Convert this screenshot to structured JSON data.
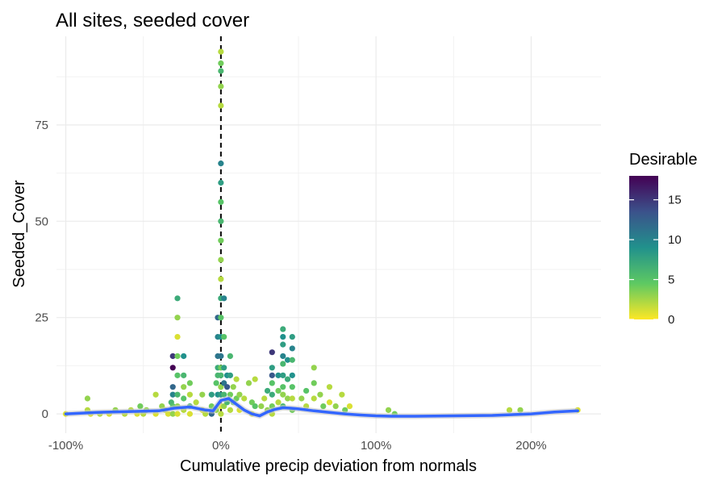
{
  "chart_data": {
    "type": "scatter",
    "title": "All sites, seeded cover",
    "xlabel": "Cumulative precip deviation from normals",
    "ylabel": "Seeded_Cover",
    "x_unit": "%",
    "xlim": [
      -106,
      245
    ],
    "ylim": [
      -5,
      98
    ],
    "x_ticks": [
      -100,
      0,
      100,
      200
    ],
    "x_tick_labels": [
      "-100%",
      "0%",
      "100%",
      "200%"
    ],
    "y_ticks": [
      0,
      25,
      50,
      75
    ],
    "y_tick_labels": [
      "0",
      "25",
      "50",
      "75"
    ],
    "grid": true,
    "reference_line": {
      "x": 0,
      "style": "dashed",
      "color": "#000000"
    },
    "color_scale": {
      "name": "Desirable",
      "palette": "viridis",
      "min": 0,
      "max": 18,
      "ticks": [
        0,
        5,
        10,
        15
      ],
      "colors": [
        "#fde725",
        "#5ec962",
        "#21918c",
        "#3b528b",
        "#440154"
      ]
    },
    "legend_position": "right",
    "points_color": "Desirable",
    "points": [
      {
        "x": -100,
        "y": 0,
        "c": 1
      },
      {
        "x": -86,
        "y": 4,
        "c": 3
      },
      {
        "x": -86,
        "y": 1,
        "c": 2
      },
      {
        "x": -84,
        "y": 0,
        "c": 1
      },
      {
        "x": -78,
        "y": 0,
        "c": 2
      },
      {
        "x": -72,
        "y": 0,
        "c": 1
      },
      {
        "x": -68,
        "y": 1,
        "c": 3
      },
      {
        "x": -62,
        "y": 0,
        "c": 2
      },
      {
        "x": -58,
        "y": 1,
        "c": 2
      },
      {
        "x": -54,
        "y": 0,
        "c": 1
      },
      {
        "x": -52,
        "y": 2,
        "c": 4
      },
      {
        "x": -50,
        "y": 0,
        "c": 2
      },
      {
        "x": -48,
        "y": 1,
        "c": 3
      },
      {
        "x": -42,
        "y": 5,
        "c": 2
      },
      {
        "x": -42,
        "y": 0,
        "c": 1
      },
      {
        "x": -38,
        "y": 2,
        "c": 3
      },
      {
        "x": -36,
        "y": 1,
        "c": 2
      },
      {
        "x": -34,
        "y": 0,
        "c": 1
      },
      {
        "x": -32,
        "y": 3,
        "c": 6
      },
      {
        "x": -31,
        "y": 15,
        "c": 15
      },
      {
        "x": -31,
        "y": 12,
        "c": 18
      },
      {
        "x": -31,
        "y": 7,
        "c": 12
      },
      {
        "x": -31,
        "y": 5,
        "c": 10
      },
      {
        "x": -31,
        "y": 2,
        "c": 5
      },
      {
        "x": -31,
        "y": 0,
        "c": 3
      },
      {
        "x": -28,
        "y": 30,
        "c": 7
      },
      {
        "x": -28,
        "y": 25,
        "c": 3
      },
      {
        "x": -28,
        "y": 20,
        "c": 1
      },
      {
        "x": -28,
        "y": 15,
        "c": 4
      },
      {
        "x": -28,
        "y": 10,
        "c": 5
      },
      {
        "x": -28,
        "y": 5,
        "c": 6
      },
      {
        "x": -28,
        "y": 2,
        "c": 3
      },
      {
        "x": -28,
        "y": 0,
        "c": 1
      },
      {
        "x": -24,
        "y": 15,
        "c": 9
      },
      {
        "x": -24,
        "y": 10,
        "c": 6
      },
      {
        "x": -24,
        "y": 7,
        "c": 3
      },
      {
        "x": -24,
        "y": 4,
        "c": 5
      },
      {
        "x": -24,
        "y": 1,
        "c": 2
      },
      {
        "x": -20,
        "y": 8,
        "c": 4
      },
      {
        "x": -20,
        "y": 5,
        "c": 2
      },
      {
        "x": -20,
        "y": 2,
        "c": 6
      },
      {
        "x": -20,
        "y": 0,
        "c": 1
      },
      {
        "x": -16,
        "y": 3,
        "c": 2
      },
      {
        "x": -12,
        "y": 5,
        "c": 3
      },
      {
        "x": -12,
        "y": 1,
        "c": 1
      },
      {
        "x": -10,
        "y": 0,
        "c": 2
      },
      {
        "x": -6,
        "y": 5,
        "c": 8
      },
      {
        "x": -6,
        "y": 2,
        "c": 4
      },
      {
        "x": -6,
        "y": 0,
        "c": 12
      },
      {
        "x": -3,
        "y": 8,
        "c": 5
      },
      {
        "x": -3,
        "y": 1,
        "c": 3
      },
      {
        "x": -2,
        "y": 25,
        "c": 12
      },
      {
        "x": -2,
        "y": 20,
        "c": 10
      },
      {
        "x": -2,
        "y": 15,
        "c": 11
      },
      {
        "x": -2,
        "y": 12,
        "c": 7
      },
      {
        "x": -2,
        "y": 10,
        "c": 6
      },
      {
        "x": -2,
        "y": 5,
        "c": 9
      },
      {
        "x": 0,
        "y": 94,
        "c": 2
      },
      {
        "x": 0,
        "y": 91,
        "c": 4
      },
      {
        "x": 0,
        "y": 89,
        "c": 6
      },
      {
        "x": 0,
        "y": 85,
        "c": 3
      },
      {
        "x": 0,
        "y": 80,
        "c": 2
      },
      {
        "x": 0,
        "y": 65,
        "c": 10
      },
      {
        "x": 0,
        "y": 60,
        "c": 8
      },
      {
        "x": 0,
        "y": 55,
        "c": 5
      },
      {
        "x": 0,
        "y": 50,
        "c": 6
      },
      {
        "x": 0,
        "y": 45,
        "c": 4
      },
      {
        "x": 0,
        "y": 40,
        "c": 3
      },
      {
        "x": 0,
        "y": 35,
        "c": 2
      },
      {
        "x": 0,
        "y": 30,
        "c": 7
      },
      {
        "x": 0,
        "y": 25,
        "c": 5
      },
      {
        "x": 0,
        "y": 20,
        "c": 9
      },
      {
        "x": 0,
        "y": 15,
        "c": 11
      },
      {
        "x": 0,
        "y": 12,
        "c": 4
      },
      {
        "x": 0,
        "y": 10,
        "c": 6
      },
      {
        "x": 0,
        "y": 7,
        "c": 3
      },
      {
        "x": 0,
        "y": 5,
        "c": 8
      },
      {
        "x": 0,
        "y": 2,
        "c": 1
      },
      {
        "x": 0,
        "y": 0,
        "c": 2
      },
      {
        "x": 2,
        "y": 30,
        "c": 10
      },
      {
        "x": 2,
        "y": 20,
        "c": 5
      },
      {
        "x": 2,
        "y": 12,
        "c": 8
      },
      {
        "x": 2,
        "y": 8,
        "c": 11
      },
      {
        "x": 2,
        "y": 5,
        "c": 6
      },
      {
        "x": 2,
        "y": 2,
        "c": 3
      },
      {
        "x": 4,
        "y": 10,
        "c": 9
      },
      {
        "x": 4,
        "y": 7,
        "c": 13
      },
      {
        "x": 4,
        "y": 3,
        "c": 6
      },
      {
        "x": 6,
        "y": 15,
        "c": 6
      },
      {
        "x": 6,
        "y": 10,
        "c": 8
      },
      {
        "x": 6,
        "y": 5,
        "c": 4
      },
      {
        "x": 6,
        "y": 1,
        "c": 2
      },
      {
        "x": 8,
        "y": 7,
        "c": 3
      },
      {
        "x": 8,
        "y": 3,
        "c": 5
      },
      {
        "x": 10,
        "y": 9,
        "c": 2
      },
      {
        "x": 10,
        "y": 4,
        "c": 4
      },
      {
        "x": 12,
        "y": 5,
        "c": 3
      },
      {
        "x": 12,
        "y": 1,
        "c": 1
      },
      {
        "x": 15,
        "y": 4,
        "c": 2
      },
      {
        "x": 18,
        "y": 8,
        "c": 3
      },
      {
        "x": 20,
        "y": 3,
        "c": 4
      },
      {
        "x": 20,
        "y": 0,
        "c": 1
      },
      {
        "x": 22,
        "y": 9,
        "c": 2
      },
      {
        "x": 22,
        "y": 2,
        "c": 5
      },
      {
        "x": 26,
        "y": 2,
        "c": 3
      },
      {
        "x": 28,
        "y": 4,
        "c": 2
      },
      {
        "x": 30,
        "y": 6,
        "c": 7
      },
      {
        "x": 30,
        "y": 1,
        "c": 3
      },
      {
        "x": 33,
        "y": 16,
        "c": 15
      },
      {
        "x": 33,
        "y": 12,
        "c": 8
      },
      {
        "x": 33,
        "y": 10,
        "c": 13
      },
      {
        "x": 33,
        "y": 8,
        "c": 5
      },
      {
        "x": 33,
        "y": 5,
        "c": 7
      },
      {
        "x": 33,
        "y": 2,
        "c": 4
      },
      {
        "x": 33,
        "y": 0,
        "c": 2
      },
      {
        "x": 37,
        "y": 10,
        "c": 9
      },
      {
        "x": 37,
        "y": 6,
        "c": 4
      },
      {
        "x": 37,
        "y": 3,
        "c": 2
      },
      {
        "x": 40,
        "y": 22,
        "c": 7
      },
      {
        "x": 40,
        "y": 20,
        "c": 9
      },
      {
        "x": 40,
        "y": 18,
        "c": 8
      },
      {
        "x": 40,
        "y": 15,
        "c": 10
      },
      {
        "x": 40,
        "y": 13,
        "c": 6
      },
      {
        "x": 40,
        "y": 10,
        "c": 8
      },
      {
        "x": 40,
        "y": 7,
        "c": 5
      },
      {
        "x": 40,
        "y": 5,
        "c": 3
      },
      {
        "x": 40,
        "y": 2,
        "c": 6
      },
      {
        "x": 43,
        "y": 14,
        "c": 9
      },
      {
        "x": 43,
        "y": 9,
        "c": 7
      },
      {
        "x": 43,
        "y": 4,
        "c": 3
      },
      {
        "x": 46,
        "y": 20,
        "c": 8
      },
      {
        "x": 46,
        "y": 17,
        "c": 10
      },
      {
        "x": 46,
        "y": 14,
        "c": 6
      },
      {
        "x": 46,
        "y": 10,
        "c": 9
      },
      {
        "x": 46,
        "y": 7,
        "c": 5
      },
      {
        "x": 46,
        "y": 4,
        "c": 2
      },
      {
        "x": 46,
        "y": 1,
        "c": 4
      },
      {
        "x": 52,
        "y": 4,
        "c": 3
      },
      {
        "x": 55,
        "y": 6,
        "c": 5
      },
      {
        "x": 55,
        "y": 2,
        "c": 2
      },
      {
        "x": 60,
        "y": 12,
        "c": 3
      },
      {
        "x": 60,
        "y": 8,
        "c": 4
      },
      {
        "x": 60,
        "y": 4,
        "c": 2
      },
      {
        "x": 64,
        "y": 5,
        "c": 3
      },
      {
        "x": 66,
        "y": 2,
        "c": 4
      },
      {
        "x": 70,
        "y": 7,
        "c": 2
      },
      {
        "x": 70,
        "y": 3,
        "c": 1
      },
      {
        "x": 74,
        "y": 2,
        "c": 3
      },
      {
        "x": 78,
        "y": 5,
        "c": 2
      },
      {
        "x": 80,
        "y": 1,
        "c": 4
      },
      {
        "x": 83,
        "y": 2,
        "c": 1
      },
      {
        "x": 108,
        "y": 1,
        "c": 3
      },
      {
        "x": 112,
        "y": 0,
        "c": 4
      },
      {
        "x": 186,
        "y": 1,
        "c": 2
      },
      {
        "x": 193,
        "y": 1,
        "c": 3
      },
      {
        "x": 230,
        "y": 1,
        "c": 1
      }
    ],
    "smooth_line": {
      "color": "#3366ff",
      "x": [
        -100,
        -80,
        -60,
        -40,
        -30,
        -20,
        -10,
        -5,
        0,
        5,
        10,
        15,
        20,
        25,
        30,
        35,
        40,
        45,
        50,
        60,
        70,
        80,
        90,
        100,
        110,
        125,
        150,
        175,
        200,
        215,
        230
      ],
      "y": [
        0,
        0.4,
        0.6,
        0.8,
        1.5,
        1.8,
        1.0,
        0.8,
        3.5,
        4.0,
        2.5,
        1.0,
        0,
        -0.5,
        0.5,
        1.2,
        1.6,
        1.5,
        1.3,
        0.8,
        0.4,
        0,
        -0.3,
        -0.5,
        -0.6,
        -0.6,
        -0.5,
        -0.4,
        0,
        0.5,
        0.8
      ]
    }
  }
}
